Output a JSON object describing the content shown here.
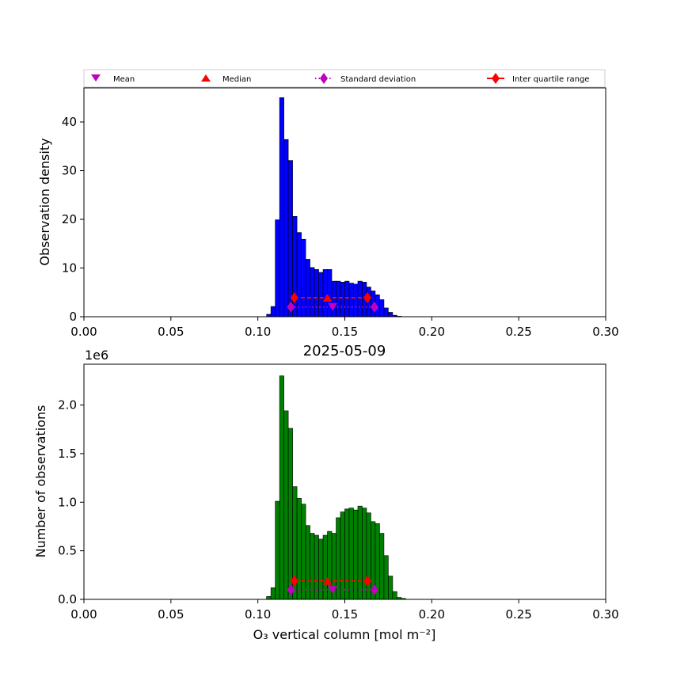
{
  "chart_data": [
    {
      "type": "bar",
      "title": "",
      "xlabel": "",
      "ylabel": "Observation density",
      "xlim": [
        0.0,
        0.3
      ],
      "ylim": [
        0,
        47
      ],
      "x_ticks": [
        "0.00",
        "0.05",
        "0.10",
        "0.15",
        "0.20",
        "0.25",
        "0.30"
      ],
      "y_ticks": [
        "0",
        "10",
        "20",
        "30",
        "40"
      ],
      "bar_color": "#0000ff",
      "bin_width": 0.0025,
      "bin_start": 0.105,
      "values": [
        0.5,
        2.1,
        19.9,
        45.0,
        36.4,
        32.1,
        20.6,
        17.3,
        15.9,
        11.8,
        10.1,
        9.7,
        9.1,
        9.7,
        9.7,
        7.3,
        7.3,
        7.1,
        7.3,
        6.9,
        6.7,
        7.3,
        7.1,
        6.1,
        5.3,
        4.5,
        3.5,
        1.8,
        0.9,
        0.3,
        0.1
      ],
      "legend": {
        "entries": [
          "Mean",
          "Median",
          "Standard deviation",
          "Inter quartile range"
        ],
        "placement": "top"
      },
      "markers": {
        "mean": {
          "x": 0.143,
          "y": 2.0
        },
        "median": {
          "x": 0.14,
          "y": 3.9
        },
        "std": {
          "x": [
            0.119,
            0.167
          ],
          "y": 2.0
        },
        "iqr": {
          "x": [
            0.121,
            0.163
          ],
          "y": 3.9
        }
      }
    },
    {
      "type": "bar",
      "title": "2025-05-09",
      "xlabel": "O₃ vertical column [mol m⁻²]",
      "ylabel": "Number of observations",
      "axis_offset_text": "1e6",
      "xlim": [
        0.0,
        0.3
      ],
      "ylim": [
        0,
        2.42
      ],
      "x_ticks": [
        "0.00",
        "0.05",
        "0.10",
        "0.15",
        "0.20",
        "0.25",
        "0.30"
      ],
      "y_ticks": [
        "0.0",
        "0.5",
        "1.0",
        "1.5",
        "2.0"
      ],
      "bar_color": "#008000",
      "bin_width": 0.0025,
      "bin_start": 0.105,
      "values": [
        0.03,
        0.12,
        1.01,
        2.3,
        1.94,
        1.76,
        1.16,
        1.04,
        0.98,
        0.76,
        0.68,
        0.66,
        0.62,
        0.66,
        0.7,
        0.68,
        0.84,
        0.9,
        0.93,
        0.94,
        0.92,
        0.96,
        0.94,
        0.89,
        0.8,
        0.78,
        0.68,
        0.45,
        0.24,
        0.08,
        0.02,
        0.01
      ],
      "markers": {
        "mean": {
          "x": 0.143,
          "y": 0.1
        },
        "median": {
          "x": 0.14,
          "y": 0.19
        },
        "std": {
          "x": [
            0.119,
            0.167
          ],
          "y": 0.1
        },
        "iqr": {
          "x": [
            0.121,
            0.163
          ],
          "y": 0.19
        }
      }
    }
  ]
}
